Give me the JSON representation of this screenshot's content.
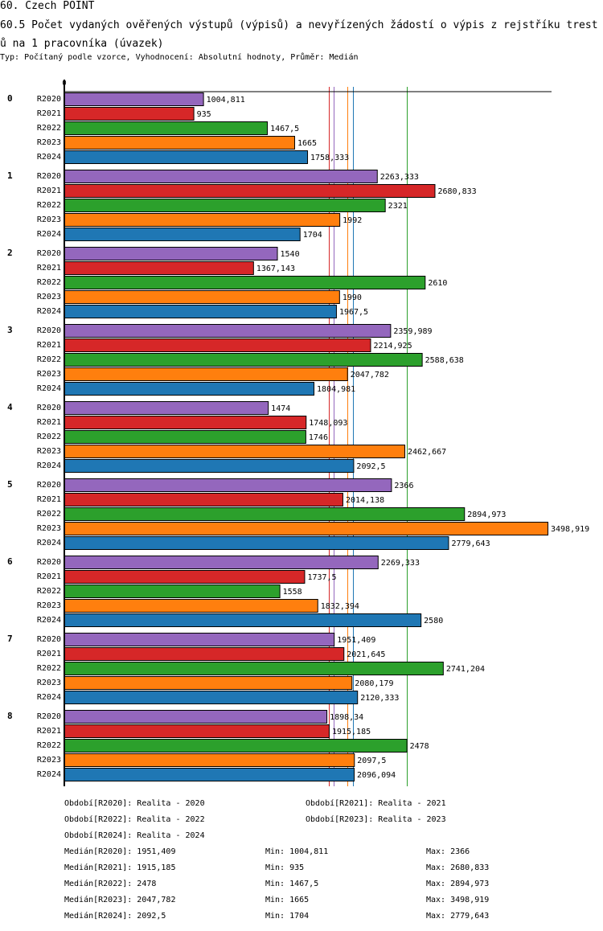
{
  "header": {
    "title": "60. Czech POINT",
    "subtitle": "60.5 Počet vydaných ověřených výstupů (výpisů) a nevyřízených žádostí o výpis z rejstříku trestů na 1 pracovníka (úvazek)",
    "info": "Typ: Počítaný podle vzorce, Vyhodnocení: Absolutní hodnoty, Průměr: Medián"
  },
  "chart_data": {
    "type": "bar",
    "orientation": "horizontal",
    "title": "60.5 Počet vydaných ověřených výstupů (výpisů) a nevyřízených žádostí o výpis z rejstříku trestů na 1 pracovníka (úvazek)",
    "xlabel": "",
    "ylabel": "",
    "x_tick_labels": [
      "0"
    ],
    "xlim": [
      0,
      3500
    ],
    "grid": false,
    "categories": [
      "0",
      "1",
      "2",
      "3",
      "4",
      "5",
      "6",
      "7",
      "8"
    ],
    "series": [
      {
        "name": "R2020",
        "color": "#9467bd",
        "values": [
          1004.811,
          2263.333,
          1540,
          2359.989,
          1474,
          2366,
          2269.333,
          1951.409,
          1898.34
        ],
        "labels": [
          "1004,811",
          "2263,333",
          "1540",
          "2359,989",
          "1474",
          "2366",
          "2269,333",
          "1951,409",
          "1898,34"
        ]
      },
      {
        "name": "R2021",
        "color": "#d62728",
        "values": [
          935,
          2680.833,
          1367.143,
          2214.925,
          1748.093,
          2014.138,
          1737.5,
          2021.645,
          1915.185
        ],
        "labels": [
          "935",
          "2680,833",
          "1367,143",
          "2214,925",
          "1748,093",
          "2014,138",
          "1737,5",
          "2021,645",
          "1915,185"
        ]
      },
      {
        "name": "R2022",
        "color": "#2ca02c",
        "values": [
          1467.5,
          2321,
          2610,
          2588.638,
          1746,
          2894.973,
          1558,
          2741.204,
          2478
        ],
        "labels": [
          "1467,5",
          "2321",
          "2610",
          "2588,638",
          "1746",
          "2894,973",
          "1558",
          "2741,204",
          "2478"
        ]
      },
      {
        "name": "R2023",
        "color": "#ff7f0e",
        "values": [
          1665,
          1992,
          1990,
          2047.782,
          2462.667,
          3498.919,
          1832.394,
          2080.179,
          2097.5
        ],
        "labels": [
          "1665",
          "1992",
          "1990",
          "2047,782",
          "2462,667",
          "3498,919",
          "1832,394",
          "2080,179",
          "2097,5"
        ]
      },
      {
        "name": "R2024",
        "color": "#1f77b4",
        "values": [
          1758.333,
          1704,
          1967.5,
          1804.981,
          2092.5,
          2779.643,
          2580,
          2120.333,
          2096.094
        ],
        "labels": [
          "1758,333",
          "1704",
          "1967,5",
          "1804,981",
          "2092,5",
          "2779,643",
          "2580",
          "2120,333",
          "2096,094"
        ]
      }
    ],
    "median_lines": [
      {
        "series": "R2020",
        "value": 1951.409,
        "color": "#9467bd"
      },
      {
        "series": "R2021",
        "value": 1915.185,
        "color": "#d62728"
      },
      {
        "series": "R2022",
        "value": 2478,
        "color": "#2ca02c"
      },
      {
        "series": "R2023",
        "value": 2047.782,
        "color": "#ff7f0e"
      },
      {
        "series": "R2024",
        "value": 2092.5,
        "color": "#1f77b4"
      }
    ]
  },
  "legend": {
    "periods": [
      "Období[R2020]: Realita - 2020",
      "Období[R2021]: Realita - 2021",
      "Období[R2022]: Realita - 2022",
      "Období[R2023]: Realita - 2023",
      "Období[R2024]: Realita - 2024"
    ],
    "stats": [
      {
        "median": "Medián[R2020]: 1951,409",
        "min": "Min: 1004,811",
        "max": "Max: 2366"
      },
      {
        "median": "Medián[R2021]: 1915,185",
        "min": "Min: 935",
        "max": "Max: 2680,833"
      },
      {
        "median": "Medián[R2022]: 2478",
        "min": "Min: 1467,5",
        "max": "Max: 2894,973"
      },
      {
        "median": "Medián[R2023]: 2047,782",
        "min": "Min: 1665",
        "max": "Max: 3498,919"
      },
      {
        "median": "Medián[R2024]: 2092,5",
        "min": "Min: 1704",
        "max": "Max: 2779,643"
      }
    ]
  }
}
